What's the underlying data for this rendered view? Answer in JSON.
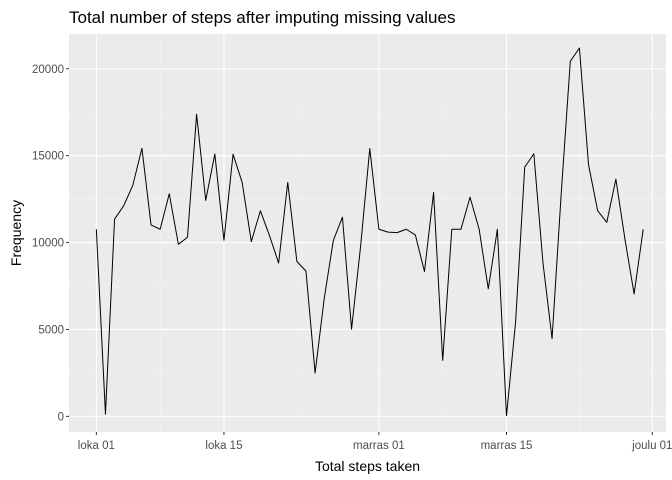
{
  "chart_data": {
    "type": "line",
    "title": "Total number of steps after imputing missing values",
    "xlabel": "Total steps taken",
    "ylabel": "Frequency",
    "x_tick_labels": [
      "loka 01",
      "loka 15",
      "marras 01",
      "marras 15",
      "joulu 01"
    ],
    "x_tick_days": [
      0,
      14,
      31,
      45,
      61
    ],
    "y_ticks": [
      0,
      5000,
      10000,
      15000,
      20000
    ],
    "ylim": [
      -900,
      22000
    ],
    "xlim": [
      -3,
      62.5
    ],
    "grid": true,
    "colors": {
      "panel": "#ebebeb",
      "grid_major": "#ffffff",
      "grid_minor": "#f5f5f5",
      "line": "#000000"
    },
    "series": [
      {
        "x": [
          "2012-10-01",
          "2012-10-02",
          "2012-10-03",
          "2012-10-04",
          "2012-10-05",
          "2012-10-06",
          "2012-10-07",
          "2012-10-08",
          "2012-10-09",
          "2012-10-10",
          "2012-10-11",
          "2012-10-12",
          "2012-10-13",
          "2012-10-14",
          "2012-10-15",
          "2012-10-16",
          "2012-10-17",
          "2012-10-18",
          "2012-10-19",
          "2012-10-20",
          "2012-10-21",
          "2012-10-22",
          "2012-10-23",
          "2012-10-24",
          "2012-10-25",
          "2012-10-26",
          "2012-10-27",
          "2012-10-28",
          "2012-10-29",
          "2012-10-30",
          "2012-10-31",
          "2012-11-01",
          "2012-11-02",
          "2012-11-03",
          "2012-11-04",
          "2012-11-05",
          "2012-11-06",
          "2012-11-07",
          "2012-11-08",
          "2012-11-09",
          "2012-11-10",
          "2012-11-11",
          "2012-11-12",
          "2012-11-13",
          "2012-11-14",
          "2012-11-15",
          "2012-11-16",
          "2012-11-17",
          "2012-11-18",
          "2012-11-19",
          "2012-11-20",
          "2012-11-21",
          "2012-11-22",
          "2012-11-23",
          "2012-11-24",
          "2012-11-25",
          "2012-11-26",
          "2012-11-27",
          "2012-11-28",
          "2012-11-29",
          "2012-11-30"
        ],
        "values": [
          10766,
          126,
          11352,
          12116,
          13294,
          15420,
          11015,
          10766,
          12811,
          9900,
          10304,
          17382,
          12426,
          15098,
          10139,
          15084,
          13452,
          10056,
          11829,
          10395,
          8821,
          13460,
          8918,
          8355,
          2492,
          6778,
          10119,
          11458,
          5018,
          9819,
          15414,
          10766,
          10600,
          10571,
          10766,
          10439,
          8334,
          12883,
          3219,
          10766,
          10766,
          12608,
          10765,
          7336,
          10766,
          41,
          5441,
          14339,
          15110,
          8841,
          4472,
          12787,
          20427,
          21194,
          14478,
          11834,
          11162,
          13646,
          10183,
          7047,
          10766
        ]
      }
    ]
  }
}
